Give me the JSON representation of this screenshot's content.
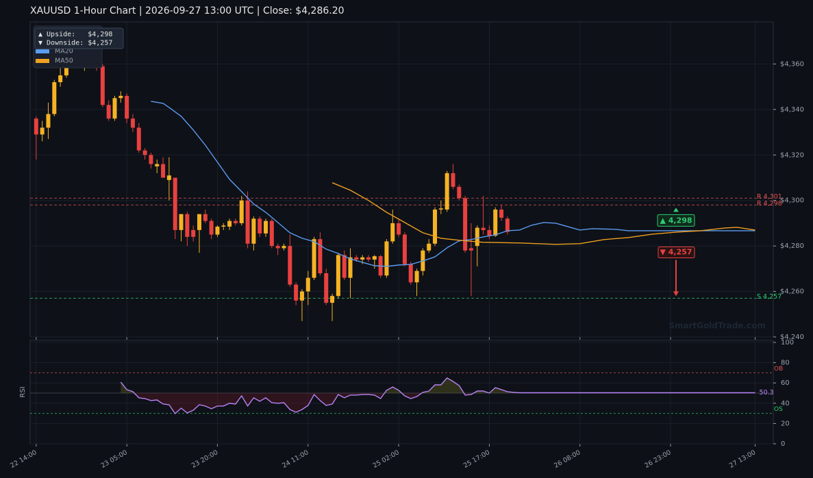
{
  "chart_data": [
    {
      "type": "candlestick",
      "title": "XAUUSD  1-Hour Chart  |  2026-09-27 13:00 UTC  |  Close: $4,286.20",
      "x": [
        "22 14:00",
        "22 15:00",
        "22 16:00",
        "22 17:00",
        "22 18:00",
        "22 19:00",
        "22 20:00",
        "22 21:00",
        "22 22:00",
        "22 23:00",
        "23 00:00",
        "23 01:00",
        "23 02:00",
        "23 03:00",
        "23 04:00",
        "23 05:00",
        "23 06:00",
        "23 07:00",
        "23 08:00",
        "23 09:00",
        "23 10:00",
        "23 11:00",
        "23 12:00",
        "23 13:00",
        "23 14:00",
        "23 15:00",
        "23 16:00",
        "23 17:00",
        "23 18:00",
        "23 19:00",
        "23 20:00",
        "23 21:00",
        "23 22:00",
        "23 23:00",
        "24 00:00",
        "24 01:00",
        "24 02:00",
        "24 03:00",
        "24 04:00",
        "24 05:00",
        "24 06:00",
        "24 07:00",
        "24 08:00",
        "24 09:00",
        "24 10:00",
        "24 11:00",
        "24 12:00",
        "24 13:00",
        "24 14:00",
        "24 15:00",
        "24 16:00",
        "24 17:00",
        "24 18:00",
        "24 19:00",
        "24 20:00",
        "24 21:00",
        "24 22:00",
        "24 23:00",
        "25 00:00",
        "25 01:00",
        "25 02:00",
        "25 03:00",
        "25 04:00",
        "25 05:00",
        "25 06:00",
        "25 07:00",
        "25 08:00",
        "25 09:00",
        "25 10:00",
        "25 11:00",
        "25 12:00",
        "25 13:00",
        "25 14:00",
        "25 15:00",
        "25 16:00",
        "25 17:00",
        "25 18:00",
        "25 19:00",
        "25 20:00"
      ],
      "open": [
        4336,
        4329,
        4332,
        4338,
        4352,
        4355,
        4362,
        4367,
        4359,
        4363,
        4365,
        4359,
        4342,
        4336,
        4345,
        4346,
        4336,
        4332,
        4322,
        4320,
        4315,
        4316,
        4309,
        4310,
        4287,
        4294,
        4287,
        4287,
        4294,
        4291,
        4285,
        4288.5,
        4288.5,
        4291,
        4290,
        4300,
        4281,
        4292,
        4285.5,
        4291,
        4280,
        4279,
        4280,
        4263,
        4256,
        4260,
        4266,
        4283,
        4268,
        4255,
        4258,
        4276,
        4266,
        4275,
        4274,
        4275,
        4274,
        4275.5,
        4267,
        4282,
        4290,
        4285,
        4272,
        4264,
        4269,
        4278,
        4281,
        4296,
        4296,
        4312,
        4306,
        4301,
        4279,
        4280,
        4288,
        4287,
        4284.5,
        4296,
        4292
      ],
      "high": [
        4337,
        4335,
        4343,
        4353,
        4360,
        4365,
        4370,
        4372,
        4366,
        4368,
        4367,
        4360,
        4344,
        4346,
        4348,
        4347,
        4338,
        4334,
        4323,
        4321,
        4318,
        4319,
        4319,
        4310,
        4294,
        4295,
        4289,
        4294,
        4296,
        4292,
        4289,
        4290,
        4292,
        4292,
        4302,
        4304,
        4293,
        4293,
        4292,
        4292,
        4281,
        4281,
        4285,
        4264,
        4261,
        4269,
        4284,
        4286,
        4270,
        4259,
        4277,
        4278,
        4279,
        4276,
        4276,
        4276,
        4276,
        4276,
        4283,
        4296,
        4292,
        4286,
        4273,
        4270,
        4279,
        4283,
        4297,
        4300,
        4313,
        4316,
        4307,
        4302,
        4290,
        4289,
        4302,
        4289,
        4297,
        4298,
        4293
      ],
      "low": [
        4318,
        4326,
        4327,
        4337,
        4350,
        4354,
        4360,
        4362,
        4357,
        4362,
        4357,
        4341,
        4335,
        4335,
        4343,
        4334,
        4330,
        4321,
        4318,
        4314,
        4312,
        4310,
        4300,
        4283,
        4282,
        4280,
        4282,
        4277,
        4290,
        4283,
        4284,
        4287,
        4287,
        4289,
        4289,
        4279,
        4278,
        4284,
        4284,
        4279,
        4276,
        4278,
        4262,
        4254,
        4247,
        4254,
        4265,
        4267,
        4254,
        4247,
        4257,
        4265,
        4257,
        4273,
        4272,
        4273,
        4270,
        4266,
        4266,
        4281,
        4284,
        4271,
        4263,
        4258,
        4267,
        4277,
        4280,
        4294,
        4295,
        4305,
        4300,
        4277,
        4258,
        4271,
        4285,
        4283,
        4284,
        4291,
        4285
      ],
      "close": [
        4329,
        4332,
        4338,
        4352,
        4355,
        4362,
        4367,
        4364,
        4363,
        4365,
        4359,
        4342,
        4336,
        4345,
        4346,
        4336,
        4332,
        4322,
        4320,
        4316,
        4316,
        4310,
        4311,
        4287,
        4294,
        4284,
        4284,
        4294,
        4291,
        4285,
        4288.5,
        4289,
        4291,
        4290,
        4300,
        4281,
        4292,
        4285.5,
        4291,
        4280,
        4279,
        4280,
        4263,
        4256,
        4260,
        4266,
        4283,
        4268,
        4255,
        4258,
        4276,
        4266,
        4275,
        4274,
        4275,
        4274,
        4275.5,
        4267,
        4282,
        4290,
        4285,
        4272,
        4264,
        4269,
        4278,
        4281,
        4296,
        4296.5,
        4312,
        4306,
        4301,
        4278,
        4278,
        4288,
        4287,
        4284.5,
        4296,
        4292.4,
        4286.2
      ],
      "up_color": "#f5b324",
      "down_color": "#e8413f",
      "series": [
        {
          "name": "MA20",
          "color": "#5b9cf0",
          "x": [
            "23 09:00",
            "23 11:00",
            "23 12:00",
            "23 14:00",
            "23 16:00",
            "23 18:00",
            "23 20:00",
            "23 22:00",
            "24 00:00",
            "24 02:00",
            "24 04:00",
            "24 06:00",
            "24 08:00",
            "24 10:00",
            "24 12:00",
            "24 14:00",
            "24 16:00",
            "24 18:00",
            "24 20:00",
            "24 22:00",
            "25 00:00",
            "25 02:00",
            "25 04:00",
            "25 06:00",
            "25 08:00",
            "25 10:00",
            "25 12:00",
            "25 14:00",
            "25 16:00",
            "25 18:00",
            "25 20:00",
            "25 22:00",
            "26 00:00",
            "26 02:00",
            "26 04:00",
            "26 06:00",
            "26 08:00",
            "26 10:00",
            "26 14:00",
            "26 16:00",
            "27 13:00"
          ],
          "values": [
            4343.6,
            4342.7,
            4340.9,
            4337,
            4331,
            4324.3,
            4316.8,
            4309.3,
            4303.9,
            4298.4,
            4294.8,
            4290.3,
            4285.8,
            4283.4,
            4281.9,
            4278.6,
            4276.7,
            4274.3,
            4272.8,
            4271.3,
            4271,
            4271.6,
            4271.9,
            4273.4,
            4275.2,
            4279.2,
            4282.2,
            4282.8,
            4284,
            4284.9,
            4286.7,
            4287,
            4289.1,
            4290.3,
            4290,
            4288.5,
            4287,
            4287.6,
            4287.3,
            4286.7,
            4286.7
          ]
        },
        {
          "name": "MA50",
          "color": "#f0a020",
          "x": [
            "24 15:00",
            "24 18:00",
            "24 21:00",
            "25 00:00",
            "25 03:00",
            "25 06:00",
            "25 09:00",
            "25 12:00",
            "25 16:00",
            "25 22:00",
            "26 04:00",
            "26 08:00",
            "26 12:00",
            "26 16:00",
            "26 20:00",
            "27 00:00",
            "27 04:00",
            "27 08:00",
            "27 10:00",
            "27 13:00"
          ],
          "values": [
            4307.8,
            4304.5,
            4300,
            4294.8,
            4290.3,
            4285.8,
            4283.4,
            4282.5,
            4281.6,
            4281.3,
            4280.7,
            4281,
            4282.8,
            4283.7,
            4285.2,
            4286.1,
            4286.7,
            4287.9,
            4288.2,
            4287
          ]
        }
      ],
      "ylim": [
        4240,
        4378.5
      ],
      "yticks": [
        {
          "value": 4240,
          "label": "$4,240"
        },
        {
          "value": 4260,
          "label": "$4,260"
        },
        {
          "value": 4280,
          "label": "$4,280"
        },
        {
          "value": 4300,
          "label": "$4,300"
        },
        {
          "value": 4320,
          "label": "$4,320"
        },
        {
          "value": 4340,
          "label": "$4,340"
        },
        {
          "value": 4360,
          "label": "$4,360"
        }
      ],
      "xlim": [
        "22 13:00",
        "27 16:00"
      ],
      "xticks": [
        "22 14:00",
        "23 05:00",
        "23 20:00",
        "24 11:00",
        "25 02:00",
        "25 17:00",
        "26 08:00",
        "26 23:00",
        "27 13:00"
      ],
      "grid": true,
      "lines": [
        {
          "label": "R 4,301",
          "value": 4301,
          "color": "#e05555"
        },
        {
          "label": "R 4,298",
          "value": 4298,
          "color": "#e05555"
        },
        {
          "label": "S 4,257",
          "value": 4257,
          "color": "#2ecc71"
        }
      ],
      "annotations": [
        {
          "label": "▲ 4,298",
          "value": 4298,
          "color": "#2ecc71"
        },
        {
          "label": "▼ 4,257",
          "value": 4257,
          "color": "#e8413f"
        }
      ],
      "info_box": [
        "▲ Upside:   $4,298",
        "▼ Downside: $4,257"
      ],
      "watermark": "SmartGoldTrade.com"
    },
    {
      "type": "line",
      "ylabel": "RSI",
      "color": "#b784f5",
      "x": [
        "23 04:00",
        "23 05:00",
        "23 06:00",
        "23 07:00",
        "23 08:00",
        "23 09:00",
        "23 10:00",
        "23 11:00",
        "23 12:00",
        "23 13:00",
        "23 14:00",
        "23 15:00",
        "23 16:00",
        "23 17:00",
        "23 18:00",
        "23 19:00",
        "23 20:00",
        "23 21:00",
        "23 22:00",
        "23 23:00",
        "24 00:00",
        "24 01:00",
        "24 02:00",
        "24 03:00",
        "24 04:00",
        "24 05:00",
        "24 06:00",
        "24 07:00",
        "24 08:00",
        "24 09:00",
        "24 10:00",
        "24 11:00",
        "24 12:00",
        "24 13:00",
        "24 14:00",
        "24 15:00",
        "24 16:00",
        "24 17:00",
        "24 18:00",
        "24 19:00",
        "24 20:00",
        "24 21:00",
        "24 22:00",
        "24 23:00",
        "25 00:00",
        "25 01:00",
        "25 02:00",
        "25 03:00",
        "25 04:00",
        "25 05:00",
        "25 06:00",
        "25 07:00",
        "25 08:00",
        "25 09:00",
        "25 10:00",
        "25 11:00",
        "25 12:00",
        "25 13:00",
        "25 14:00",
        "25 15:00",
        "25 16:00",
        "25 17:00",
        "25 18:00",
        "25 19:00",
        "25 20:00",
        "25 21:00",
        "25 22:00",
        "27 13:00"
      ],
      "values": [
        60.8,
        53.4,
        51.4,
        45.3,
        44.6,
        42.6,
        43.2,
        39.2,
        38.5,
        29.7,
        35.1,
        30.4,
        33.1,
        38.5,
        37.2,
        34.5,
        37.2,
        37.2,
        39.9,
        39.2,
        47.3,
        37.2,
        45.3,
        41.9,
        45.3,
        40.5,
        39.9,
        40.5,
        33.8,
        31.1,
        33.8,
        37.8,
        48.6,
        42.6,
        37.8,
        39.2,
        48.6,
        45.3,
        48,
        48,
        48.6,
        48.6,
        48,
        44.6,
        52.7,
        56.1,
        52.7,
        47.3,
        44.6,
        46.6,
        50.7,
        52,
        58.1,
        58.1,
        64.9,
        61.5,
        57.4,
        48,
        48.6,
        52,
        52,
        50,
        55.4,
        53.4,
        51.4,
        50.7,
        50.3,
        50.3
      ],
      "ylim": [
        0,
        102
      ],
      "yticks": [
        0,
        20,
        40,
        60,
        80,
        100
      ],
      "midline": 50,
      "levels": [
        {
          "label": "OB",
          "value": 70,
          "color": "#e05555"
        },
        {
          "label": "OS",
          "value": 30,
          "color": "#2ecc71"
        }
      ]
    }
  ]
}
